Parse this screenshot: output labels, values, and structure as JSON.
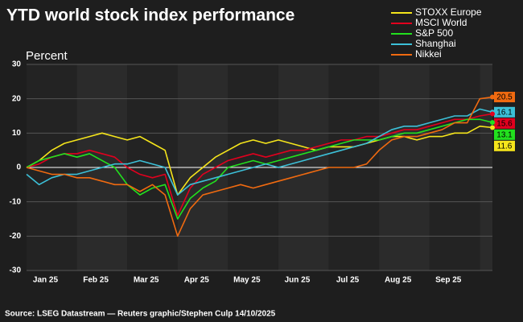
{
  "chart_data": {
    "type": "line",
    "title": "YTD world stock index performance",
    "y_label": "Percent",
    "source": "Source: LSEG Datastream — Reuters graphic/Stephen Culp 14/10/2025",
    "categories": [
      null,
      "Jan 25",
      null,
      null,
      null,
      "Feb 25",
      null,
      null,
      null,
      "Mar 25",
      null,
      null,
      null,
      "Apr 25",
      null,
      null,
      null,
      "May 25",
      null,
      null,
      null,
      "Jun 25",
      null,
      null,
      null,
      "Jul 25",
      null,
      null,
      null,
      "Aug 25",
      null,
      null,
      null,
      "Sep 25",
      null,
      null,
      null,
      null
    ],
    "ylim": [
      -30,
      30
    ],
    "yticks": [
      -30,
      -20,
      -10,
      0,
      10,
      20,
      30
    ],
    "grid": true,
    "series": [
      {
        "name": "STOXX Europe",
        "color": "#f5e51b",
        "values": [
          0,
          2,
          5,
          7,
          8,
          9,
          10,
          9,
          8,
          9,
          7,
          5,
          -8,
          -3,
          0,
          3,
          5,
          7,
          8,
          7,
          8,
          7,
          6,
          5,
          6,
          6,
          6,
          7,
          8,
          9,
          9,
          8,
          9,
          9,
          10,
          10,
          12,
          11.6
        ]
      },
      {
        "name": "MSCI World",
        "color": "#e1001e",
        "values": [
          0,
          1,
          3,
          4,
          4,
          5,
          4,
          3,
          0,
          -2,
          -3,
          -2,
          -14,
          -6,
          -2,
          0,
          2,
          3,
          4,
          3,
          4,
          5,
          5,
          6,
          7,
          8,
          8,
          9,
          9,
          10,
          11,
          11,
          12,
          13,
          14,
          14,
          15,
          15.6
        ]
      },
      {
        "name": "S&P 500",
        "color": "#22e01e",
        "values": [
          0,
          2,
          3,
          4,
          3,
          4,
          2,
          0,
          -5,
          -8,
          -6,
          -5,
          -15,
          -9,
          -6,
          -4,
          0,
          1,
          2,
          1,
          2,
          3,
          4,
          5,
          6,
          7,
          8,
          8,
          8,
          9,
          10,
          10,
          11,
          12,
          13,
          14,
          14,
          13.1
        ]
      },
      {
        "name": "Shanghai",
        "color": "#3cc0d8",
        "values": [
          -2,
          -5,
          -3,
          -2,
          -2,
          -1,
          0,
          1,
          1,
          2,
          1,
          0,
          -8,
          -5,
          -4,
          -3,
          -2,
          -1,
          0,
          1,
          0,
          1,
          2,
          3,
          4,
          5,
          6,
          7,
          9,
          11,
          12,
          12,
          13,
          14,
          15,
          15,
          17,
          16.1
        ]
      },
      {
        "name": "Nikkei",
        "color": "#f06a10",
        "values": [
          0,
          -1,
          -2,
          -2,
          -3,
          -3,
          -4,
          -5,
          -5,
          -7,
          -5,
          -8,
          -20,
          -12,
          -8,
          -7,
          -6,
          -5,
          -6,
          -5,
          -4,
          -3,
          -2,
          -1,
          0,
          0,
          0,
          1,
          5,
          8,
          9,
          9,
          10,
          11,
          13,
          13,
          20,
          20.5
        ]
      }
    ]
  }
}
